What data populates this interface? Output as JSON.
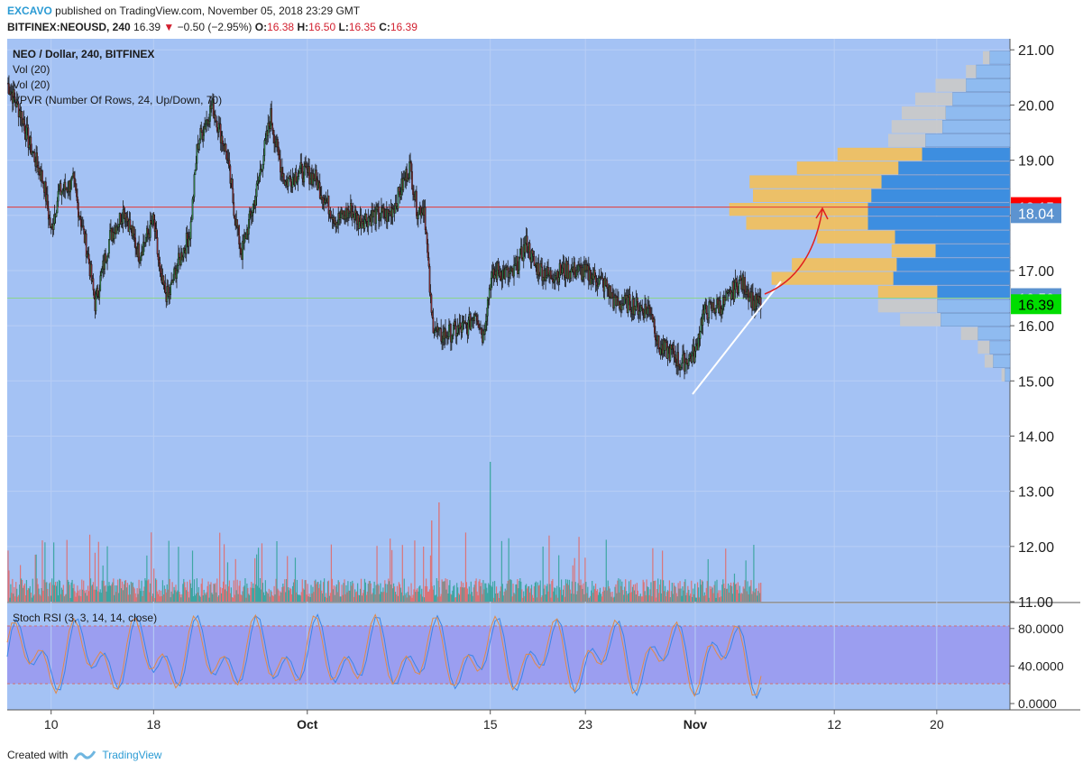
{
  "header": {
    "author": "EXCAVO",
    "published": "published on TradingView.com, November 05, 2018 23:29 GMT",
    "symbol": "BITFINEX:NEOUSD, 240",
    "last": "16.39",
    "change": "−0.50 (−2.95%)",
    "o_label": "O:",
    "o": "16.38",
    "h_label": "H:",
    "h": "16.50",
    "l_label": "L:",
    "l": "16.35",
    "c_label": "C:",
    "c": "16.39"
  },
  "legend": {
    "title": "NEO / Dollar, 240, BITFINEX",
    "vol1": "Vol (20)",
    "vol2": "Vol (20)",
    "vpvr": "VPVR (Number Of Rows, 24, Up/Down, 70)"
  },
  "stoch_label": "Stoch RSI (3, 3, 14, 14, close)",
  "footer": {
    "created": "Created with",
    "brand": "TradingView"
  },
  "colors": {
    "background": "#a4c2f4",
    "up": "#3aa45a",
    "down": "#a3323a",
    "vol_up": "#34a39a",
    "vol_down": "#e06c6c",
    "vpvr_up": "#f0c060",
    "vpvr_down": "#3d8ee0",
    "red_line": "#e53935",
    "green_line": "#8bd48b",
    "stoch_band": "#9a98ef"
  },
  "chart_data": {
    "type": "candlestick",
    "timeframe": "240",
    "y_ticks": [
      "21.00",
      "20.00",
      "19.00",
      "18.00",
      "17.00",
      "16.00",
      "15.00",
      "14.00",
      "13.00",
      "12.00",
      "11.00"
    ],
    "y_tick_values": [
      21,
      20,
      19,
      18,
      17,
      16,
      15,
      14,
      13,
      12,
      11
    ],
    "ylim": [
      11,
      21.2
    ],
    "x_ticks": [
      "10",
      "18",
      "Oct",
      "15",
      "23",
      "Nov",
      "12",
      "20"
    ],
    "price_labels": [
      {
        "text": "18.15",
        "value": 18.15,
        "color": "#ff0000"
      },
      {
        "text": "18.04",
        "value": 18.04,
        "color": "#5c93d0"
      },
      {
        "text": "16.50",
        "value": 16.5,
        "color": "#5c93d0"
      },
      {
        "text": "16.39",
        "value": 16.39,
        "color": "#00dd00"
      }
    ],
    "horizontal_lines": [
      {
        "value": 18.15,
        "color": "#e53935"
      },
      {
        "value": 16.5,
        "color": "#8bd48b"
      }
    ],
    "price_path": [
      {
        "x": 0,
        "y": 20.4
      },
      {
        "x": 2,
        "y": 19.8
      },
      {
        "x": 3,
        "y": 19.3
      },
      {
        "x": 5,
        "y": 18.6
      },
      {
        "x": 6,
        "y": 17.7
      },
      {
        "x": 7,
        "y": 18.4
      },
      {
        "x": 9,
        "y": 18.6
      },
      {
        "x": 11,
        "y": 17.3
      },
      {
        "x": 12,
        "y": 16.4
      },
      {
        "x": 14,
        "y": 17.6
      },
      {
        "x": 16,
        "y": 18.1
      },
      {
        "x": 18,
        "y": 17.3
      },
      {
        "x": 20,
        "y": 17.9
      },
      {
        "x": 21,
        "y": 16.8
      },
      {
        "x": 22,
        "y": 16.5
      },
      {
        "x": 23,
        "y": 17.0
      },
      {
        "x": 25,
        "y": 17.7
      },
      {
        "x": 26,
        "y": 19.3
      },
      {
        "x": 28,
        "y": 20.0
      },
      {
        "x": 30,
        "y": 19.1
      },
      {
        "x": 31,
        "y": 18.1
      },
      {
        "x": 32,
        "y": 17.3
      },
      {
        "x": 34,
        "y": 18.4
      },
      {
        "x": 36,
        "y": 19.8
      },
      {
        "x": 37,
        "y": 19.1
      },
      {
        "x": 38,
        "y": 18.6
      },
      {
        "x": 40,
        "y": 18.8
      },
      {
        "x": 42,
        "y": 18.7
      },
      {
        "x": 43,
        "y": 18.4
      },
      {
        "x": 45,
        "y": 17.9
      },
      {
        "x": 47,
        "y": 18.1
      },
      {
        "x": 48,
        "y": 17.9
      },
      {
        "x": 50,
        "y": 18.0
      },
      {
        "x": 52,
        "y": 18.0
      },
      {
        "x": 53,
        "y": 18.2
      },
      {
        "x": 55,
        "y": 18.9
      },
      {
        "x": 56,
        "y": 18.1
      },
      {
        "x": 57,
        "y": 18.15
      },
      {
        "x": 58,
        "y": 16.1
      },
      {
        "x": 59,
        "y": 15.8
      },
      {
        "x": 61,
        "y": 15.9
      },
      {
        "x": 63,
        "y": 16.0
      },
      {
        "x": 64,
        "y": 16.3
      },
      {
        "x": 65,
        "y": 15.8
      },
      {
        "x": 66,
        "y": 16.8
      },
      {
        "x": 67,
        "y": 17.0
      },
      {
        "x": 69,
        "y": 16.9
      },
      {
        "x": 70,
        "y": 17.2
      },
      {
        "x": 71,
        "y": 17.5
      },
      {
        "x": 72,
        "y": 17.1
      },
      {
        "x": 74,
        "y": 16.9
      },
      {
        "x": 76,
        "y": 17.0
      },
      {
        "x": 78,
        "y": 17.0
      },
      {
        "x": 80,
        "y": 16.9
      },
      {
        "x": 82,
        "y": 16.7
      },
      {
        "x": 83,
        "y": 16.4
      },
      {
        "x": 85,
        "y": 16.4
      },
      {
        "x": 87,
        "y": 16.3
      },
      {
        "x": 88,
        "y": 16.3
      },
      {
        "x": 89,
        "y": 15.6
      },
      {
        "x": 91,
        "y": 15.5
      },
      {
        "x": 92,
        "y": 15.3
      },
      {
        "x": 93,
        "y": 15.4
      },
      {
        "x": 94,
        "y": 15.5
      },
      {
        "x": 95,
        "y": 16.2
      },
      {
        "x": 96,
        "y": 16.3
      },
      {
        "x": 98,
        "y": 16.4
      },
      {
        "x": 99,
        "y": 16.6
      },
      {
        "x": 100,
        "y": 16.8
      },
      {
        "x": 101,
        "y": 16.7
      },
      {
        "x": 102,
        "y": 16.4
      },
      {
        "x": 103,
        "y": 16.39
      }
    ],
    "x_range": [
      0,
      137
    ],
    "x_tick_positions": [
      6,
      20,
      41,
      66,
      79,
      94,
      113,
      127
    ],
    "vpvr_rows": [
      {
        "price": 20.85,
        "up": 0.4,
        "down": 1.2
      },
      {
        "price": 20.6,
        "up": 0.6,
        "down": 2.0
      },
      {
        "price": 20.35,
        "up": 1.8,
        "down": 2.6
      },
      {
        "price": 20.1,
        "up": 2.2,
        "down": 3.4
      },
      {
        "price": 19.85,
        "up": 2.6,
        "down": 3.8
      },
      {
        "price": 19.6,
        "up": 3.0,
        "down": 4.0
      },
      {
        "price": 19.35,
        "up": 2.2,
        "down": 5.0
      },
      {
        "price": 19.1,
        "up": 5.0,
        "down": 5.2
      },
      {
        "price": 18.85,
        "up": 6.0,
        "down": 6.6
      },
      {
        "price": 18.6,
        "up": 7.8,
        "down": 7.6
      },
      {
        "price": 18.35,
        "up": 7.0,
        "down": 8.2
      },
      {
        "price": 18.1,
        "up": 8.2,
        "down": 8.4
      },
      {
        "price": 17.85,
        "up": 7.2,
        "down": 8.4
      },
      {
        "price": 17.6,
        "up": 4.6,
        "down": 6.8
      },
      {
        "price": 17.35,
        "up": 2.6,
        "down": 4.4
      },
      {
        "price": 17.1,
        "up": 6.2,
        "down": 6.7
      },
      {
        "price": 16.85,
        "up": 7.2,
        "down": 6.9
      },
      {
        "price": 16.6,
        "up": 3.5,
        "down": 4.3
      },
      {
        "price": 16.35,
        "up": 3.5,
        "down": 4.3
      },
      {
        "price": 16.1,
        "up": 2.4,
        "down": 4.1
      },
      {
        "price": 15.85,
        "up": 1.0,
        "down": 1.9
      },
      {
        "price": 15.6,
        "up": 0.7,
        "down": 1.2
      },
      {
        "price": 15.35,
        "up": 0.5,
        "down": 1.0
      },
      {
        "price": 15.1,
        "up": 0.2,
        "down": 0.3
      }
    ],
    "stoch": {
      "ylim": [
        0,
        100
      ],
      "y_ticks": [
        "80.0000",
        "40.0000",
        "0.0000"
      ],
      "y_tick_values": [
        80,
        40,
        0
      ],
      "band": [
        20,
        80
      ]
    }
  }
}
